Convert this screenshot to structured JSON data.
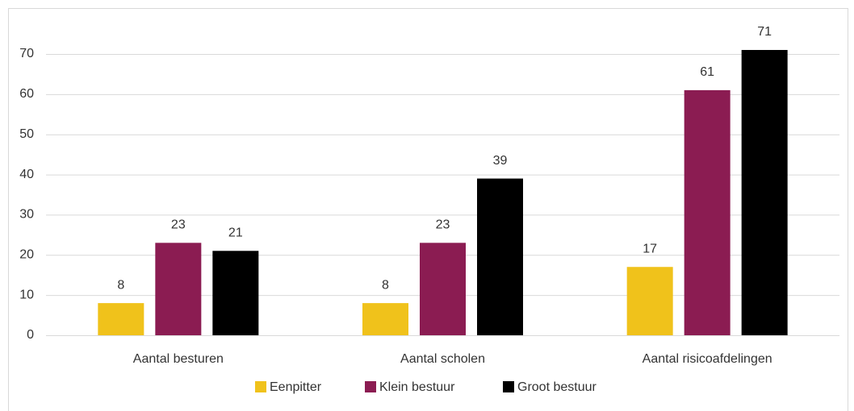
{
  "chart_data": {
    "type": "bar",
    "categories": [
      "Aantal besturen",
      "Aantal scholen",
      "Aantal risicoafdelingen"
    ],
    "series": [
      {
        "name": "Eenpitter",
        "color": "#f0c21b",
        "values": [
          8,
          8,
          17
        ]
      },
      {
        "name": "Klein bestuur",
        "color": "#8b1c52",
        "values": [
          23,
          23,
          61
        ]
      },
      {
        "name": "Groot bestuur",
        "color": "#000000",
        "values": [
          21,
          39,
          71
        ]
      }
    ],
    "ylim": [
      0,
      70
    ],
    "yticks": [
      0,
      10,
      20,
      30,
      40,
      50,
      60,
      70
    ],
    "grid": true,
    "legend": "bottom"
  }
}
